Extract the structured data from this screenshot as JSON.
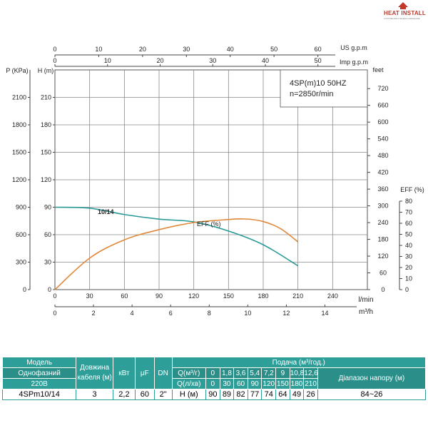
{
  "logo": {
    "name": "HEAT INSTALL",
    "tagline": "ОТОПЛЕНИЕ И ВОДОСНАБЖЕНИЕ"
  },
  "chart_data": {
    "type": "line",
    "title": "4SP(m)10 50HZ",
    "subtitle": "n=2850r/min",
    "model_label": "10/14",
    "eff_label": "EFF (%)",
    "axes": {
      "x_lpm": {
        "label": "l/min",
        "ticks": [
          0,
          30,
          60,
          90,
          120,
          150,
          180,
          210,
          240
        ],
        "range": [
          0,
          270
        ]
      },
      "x_m3h": {
        "label": "m³/h",
        "ticks": [
          0,
          2,
          4,
          6,
          8,
          10,
          12,
          14
        ],
        "range": [
          0,
          16.2
        ]
      },
      "x_us": {
        "label": "US g.p.m",
        "ticks": [
          0,
          10,
          20,
          30,
          40,
          50,
          60
        ],
        "range": [
          0,
          71.3
        ]
      },
      "x_imp": {
        "label": "Imp g.p.m",
        "ticks": [
          0,
          10,
          20,
          30,
          40,
          50
        ],
        "range": [
          0,
          59.4
        ]
      },
      "y_head_m": {
        "label": "H (m)",
        "ticks": [
          0,
          30,
          60,
          90,
          120,
          150,
          180,
          210
        ],
        "range": [
          0,
          240
        ]
      },
      "y_pressure_kpa": {
        "label": "P (KPa)",
        "ticks": [
          0,
          300,
          600,
          900,
          1200,
          1500,
          1800,
          2100
        ],
        "range": [
          0,
          2400
        ]
      },
      "y_feet": {
        "label": "feet",
        "ticks": [
          0,
          60,
          120,
          180,
          240,
          300,
          360,
          420,
          480,
          540,
          600,
          660,
          720
        ],
        "range": [
          0,
          787
        ]
      },
      "y_eff": {
        "label": "EFF (%)",
        "ticks": [
          0,
          10,
          20,
          30,
          40,
          50,
          60,
          70,
          80
        ],
        "range": [
          0,
          80
        ]
      }
    },
    "grid": true,
    "series": [
      {
        "name": "10/14",
        "color": "#2a9a97",
        "points": [
          [
            0,
            90
          ],
          [
            30,
            89
          ],
          [
            60,
            82
          ],
          [
            90,
            77
          ],
          [
            120,
            74
          ],
          [
            150,
            64
          ],
          [
            180,
            49
          ],
          [
            210,
            26
          ]
        ]
      },
      {
        "name": "EFF (%)",
        "color": "#e0883a",
        "scale": "y_eff",
        "points": [
          [
            0,
            0
          ],
          [
            30,
            31
          ],
          [
            60,
            49
          ],
          [
            90,
            59
          ],
          [
            120,
            66
          ],
          [
            150,
            69
          ],
          [
            165,
            69.5
          ],
          [
            180,
            67
          ],
          [
            195,
            60
          ],
          [
            210,
            47
          ]
        ]
      }
    ]
  },
  "table": {
    "headers": {
      "model": "Модель",
      "single_phase": "Однофазний",
      "voltage": "220В",
      "cable": "Довжина кабеля (м)",
      "kw": "кВт",
      "uf": "μF",
      "dn": "DN",
      "supply": "Подача (м³/год.)",
      "q_m3h": "Q(м³/г)",
      "q_lmin": "Q(л/хв)",
      "range": "Діапазон напору (м)"
    },
    "q_m3h_values": [
      "0",
      "1,8",
      "3,6",
      "5,4",
      "7,2",
      "9",
      "10,8",
      "12,6"
    ],
    "q_lmin_values": [
      "0",
      "30",
      "60",
      "90",
      "120",
      "150",
      "180",
      "210"
    ],
    "row": {
      "model": "4SPm10/14",
      "cable": "3",
      "kw": "2,2",
      "uf": "60",
      "dn": "2\"",
      "h_label": "H (м)",
      "h_values": [
        "90",
        "89",
        "82",
        "77",
        "74",
        "64",
        "49",
        "26"
      ],
      "range": "84~26"
    }
  }
}
